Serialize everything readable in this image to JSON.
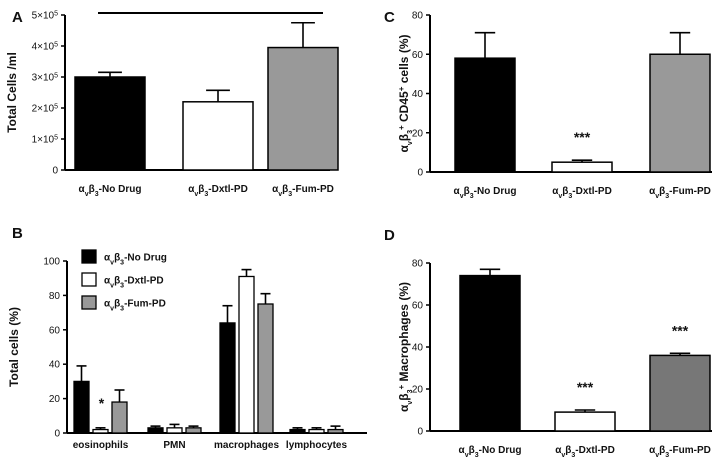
{
  "panels": [
    {
      "letter": "A",
      "ylabel": "Total Cells /ml",
      "title": "",
      "colors": [
        "#000000",
        "#ffffff",
        "#999999"
      ],
      "significance_bar": true
    },
    {
      "letter": "B",
      "ylabel": "Total cells (%)",
      "title": "",
      "legend": [
        "αvβ3-No Drug",
        "αvβ3-Dxtl-PD",
        "αvβ3-Fum-PD"
      ],
      "colors": [
        "#000000",
        "#ffffff",
        "#999999"
      ]
    },
    {
      "letter": "C",
      "ylabel": "αvβ3+ CD45+ cells (%)",
      "title": "",
      "colors": [
        "#000000",
        "#ffffff",
        "#999999"
      ]
    },
    {
      "letter": "D",
      "ylabel": "αvβ3+ Macrophages (%)",
      "title": "",
      "colors": [
        "#000000",
        "#ffffff",
        "#777777"
      ]
    }
  ],
  "chart_data": [
    {
      "panel": "A",
      "type": "bar",
      "categories": [
        "αvβ3-No Drug",
        "αvβ3-Dxtl-PD",
        "αvβ3-Fum-PD"
      ],
      "values": [
        300000,
        220000,
        395000
      ],
      "errors": [
        15000,
        37000,
        80000
      ],
      "ylim": [
        0,
        500000
      ],
      "ticks": [
        0,
        100000,
        200000,
        300000,
        400000,
        500000
      ],
      "tick_labels": [
        "0",
        "1×10⁵",
        "2×10⁵",
        "3×10⁵",
        "4×10⁵",
        "5×10⁵"
      ],
      "ylabel": "Total Cells /ml",
      "annotations": []
    },
    {
      "panel": "B",
      "type": "bar",
      "categories": [
        "eosinophils",
        "PMN",
        "macrophages",
        "lymphocytes"
      ],
      "series": [
        {
          "name": "αvβ3-No Drug",
          "values": [
            30,
            3,
            64,
            2
          ],
          "errors": [
            9,
            1,
            10,
            1
          ]
        },
        {
          "name": "αvβ3-Dxtl-PD",
          "values": [
            2,
            3,
            91,
            2
          ],
          "errors": [
            1,
            2,
            4,
            1
          ]
        },
        {
          "name": "αvβ3-Fum-PD",
          "values": [
            18,
            3,
            75,
            2
          ],
          "errors": [
            7,
            1,
            6,
            2
          ]
        }
      ],
      "ylim": [
        0,
        100
      ],
      "ticks": [
        0,
        20,
        40,
        60,
        80,
        100
      ],
      "tick_labels": [
        "0",
        "20",
        "40",
        "60",
        "80",
        "100"
      ],
      "ylabel": "Total cells (%)",
      "annotations": [
        {
          "category": 0,
          "series": 1,
          "text": "*"
        }
      ]
    },
    {
      "panel": "C",
      "type": "bar",
      "categories": [
        "αvβ3-No Drug",
        "αvβ3-Dxtl-PD",
        "αvβ3-Fum-PD"
      ],
      "values": [
        58,
        5,
        60
      ],
      "errors": [
        13,
        1,
        11
      ],
      "ylim": [
        0,
        80
      ],
      "ticks": [
        0,
        20,
        40,
        60,
        80
      ],
      "tick_labels": [
        "0",
        "20",
        "40",
        "60",
        "80"
      ],
      "ylabel": "αvβ3+ CD45+ cells (%)",
      "annotations": [
        {
          "bar": 1,
          "text": "***"
        }
      ]
    },
    {
      "panel": "D",
      "type": "bar",
      "categories": [
        "αvβ3-No Drug",
        "αvβ3-Dxtl-PD",
        "αvβ3-Fum-PD"
      ],
      "values": [
        74,
        9,
        36
      ],
      "errors": [
        3,
        1,
        1
      ],
      "ylim": [
        0,
        80
      ],
      "ticks": [
        0,
        20,
        40,
        60,
        80
      ],
      "tick_labels": [
        "0",
        "20",
        "40",
        "60",
        "80"
      ],
      "ylabel": "αvβ3+ Macrophages (%)",
      "annotations": [
        {
          "bar": 1,
          "text": "***"
        },
        {
          "bar": 2,
          "text": "***"
        }
      ]
    }
  ]
}
